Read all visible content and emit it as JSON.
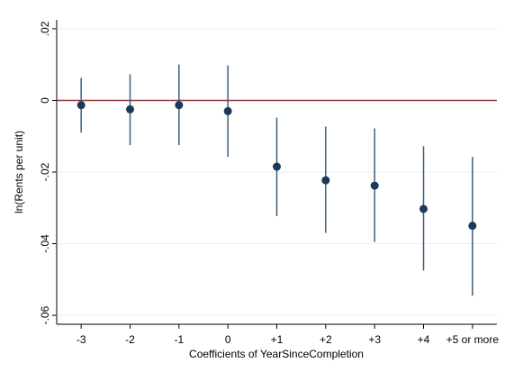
{
  "chart_data": {
    "type": "coefplot",
    "x_label": "Coefficients of YearSinceCompletion",
    "y_label": "ln(Rents per unit)",
    "categories": [
      "-3",
      "-2",
      "-1",
      "0",
      "+1",
      "+2",
      "+3",
      "+4",
      "+5 or more"
    ],
    "values": [
      -0.0013,
      -0.0025,
      -0.0013,
      -0.003,
      -0.0185,
      -0.0223,
      -0.0238,
      -0.0303,
      -0.035
    ],
    "ci_low": [
      -0.009,
      -0.0125,
      -0.0125,
      -0.0158,
      -0.0323,
      -0.037,
      -0.0395,
      -0.0475,
      -0.0545
    ],
    "ci_high": [
      0.0063,
      0.0073,
      0.01,
      0.0098,
      -0.0048,
      -0.0073,
      -0.0078,
      -0.0128,
      -0.0158
    ],
    "color": "#1a3a5c",
    "bar_color": "#3b5f80",
    "reference_line": 0,
    "reference_color": "#90353b",
    "ylim": [
      -0.0625,
      0.0225
    ],
    "yticks": [
      {
        "value": 0.02,
        "label": ".02"
      },
      0,
      {
        "value": -0.02,
        "label": "-.02"
      },
      {
        "value": -0.04,
        "label": "-.04"
      },
      {
        "value": -0.06,
        "label": "-.06"
      }
    ],
    "grid": true
  }
}
